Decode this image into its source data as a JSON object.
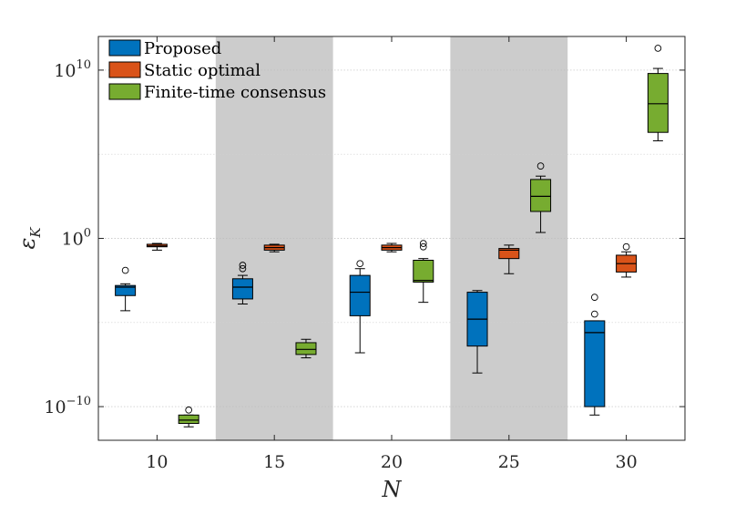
{
  "chart_data": {
    "type": "boxplot",
    "xlabel": "N",
    "ylabel": "ε",
    "ylabel_sub": "K",
    "ylim_log10": [
      -12,
      12
    ],
    "yscale": "log",
    "yticks": [
      {
        "pre": "10",
        "exp": "10"
      },
      {
        "pre": "10",
        "exp": "0"
      },
      {
        "pre": "10",
        "exp": "−10"
      }
    ],
    "ytick_values_log10": [
      10,
      0,
      -10
    ],
    "categories": [
      "10",
      "15",
      "20",
      "25",
      "30"
    ],
    "shaded_groups": [
      "15",
      "25"
    ],
    "grid": "horizontal-dotted",
    "legend_position": "top-left",
    "series": [
      {
        "name": "Proposed",
        "color": "#0072BD",
        "boxes_log10": [
          {
            "whisker_low": -4.3,
            "q1": -3.4,
            "median": -2.9,
            "q3": -2.8,
            "whisker_high": -2.7,
            "outliers": [
              -1.9
            ]
          },
          {
            "whisker_low": -3.9,
            "q1": -3.6,
            "median": -2.9,
            "q3": -2.4,
            "whisker_high": -2.2,
            "outliers": [
              -1.8,
              -1.6
            ]
          },
          {
            "whisker_low": -6.8,
            "q1": -4.6,
            "median": -3.2,
            "q3": -2.2,
            "whisker_high": -1.8,
            "outliers": [
              -1.5
            ]
          },
          {
            "whisker_low": -8.0,
            "q1": -6.4,
            "median": -4.8,
            "q3": -3.2,
            "whisker_high": -3.1,
            "outliers": []
          },
          {
            "whisker_low": -10.5,
            "q1": -10.0,
            "median": -5.6,
            "q3": -4.9,
            "whisker_high": -4.9,
            "outliers": [
              -3.5,
              -4.5
            ]
          }
        ]
      },
      {
        "name": "Static optimal",
        "color": "#D95319",
        "boxes_log10": [
          {
            "whisker_low": -0.7,
            "q1": -0.5,
            "median": -0.45,
            "q3": -0.35,
            "whisker_high": -0.3,
            "outliers": []
          },
          {
            "whisker_low": -0.8,
            "q1": -0.7,
            "median": -0.55,
            "q3": -0.4,
            "whisker_high": -0.35,
            "outliers": []
          },
          {
            "whisker_low": -0.8,
            "q1": -0.7,
            "median": -0.55,
            "q3": -0.4,
            "whisker_high": -0.3,
            "outliers": []
          },
          {
            "whisker_low": -2.1,
            "q1": -1.2,
            "median": -0.7,
            "q3": -0.6,
            "whisker_high": -0.4,
            "outliers": []
          },
          {
            "whisker_low": -2.3,
            "q1": -2.0,
            "median": -1.5,
            "q3": -1.0,
            "whisker_high": -0.8,
            "outliers": [
              -0.5
            ]
          }
        ]
      },
      {
        "name": "Finite-time consensus",
        "color": "#77AC30",
        "boxes_log10": [
          {
            "whisker_low": -11.2,
            "q1": -11.0,
            "median": -10.8,
            "q3": -10.5,
            "whisker_high": -10.5,
            "outliers": [
              -10.2
            ]
          },
          {
            "whisker_low": -7.1,
            "q1": -6.9,
            "median": -6.6,
            "q3": -6.2,
            "whisker_high": -6.0,
            "outliers": []
          },
          {
            "whisker_low": -3.8,
            "q1": -2.6,
            "median": -2.5,
            "q3": -1.3,
            "whisker_high": -1.2,
            "outliers": [
              -0.3,
              -0.5
            ]
          },
          {
            "whisker_low": 0.35,
            "q1": 1.6,
            "median": 2.5,
            "q3": 3.5,
            "whisker_high": 3.7,
            "outliers": [
              4.3
            ]
          },
          {
            "whisker_low": 5.8,
            "q1": 6.3,
            "median": 8.0,
            "q3": 9.8,
            "whisker_high": 10.1,
            "outliers": [
              11.3
            ]
          }
        ]
      }
    ]
  }
}
